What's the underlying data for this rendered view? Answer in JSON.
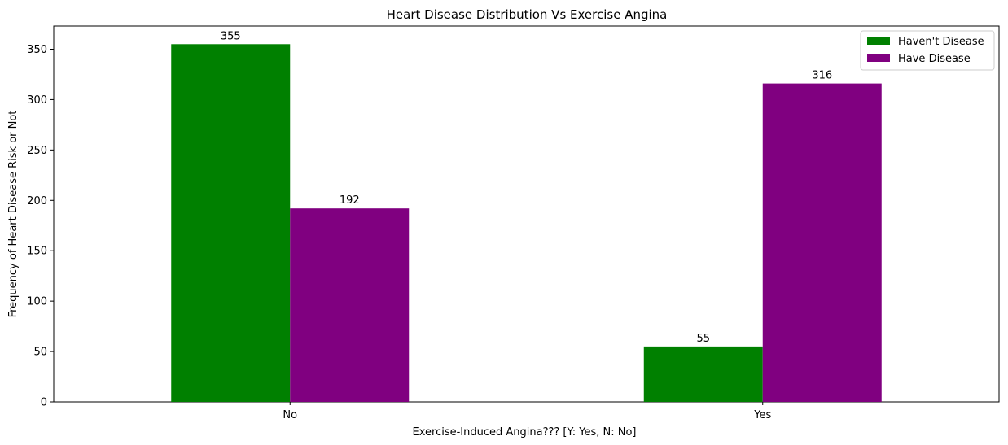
{
  "chart_data": {
    "type": "bar",
    "title": "Heart Disease Distribution Vs Exercise Angina",
    "xlabel": "Exercise-Induced Angina??? [Y: Yes, N: No]",
    "ylabel": "Frequency of Heart Disease Risk or Not",
    "categories": [
      "No",
      "Yes"
    ],
    "series": [
      {
        "name": "Haven't Disease",
        "color": "#008000",
        "values": [
          355,
          55
        ]
      },
      {
        "name": "Have Disease",
        "color": "#800080",
        "values": [
          192,
          316
        ]
      }
    ],
    "ylim": [
      0,
      373
    ],
    "yticks": [
      0,
      50,
      100,
      150,
      200,
      250,
      300,
      350
    ],
    "grid": false,
    "legend": "top-right"
  }
}
